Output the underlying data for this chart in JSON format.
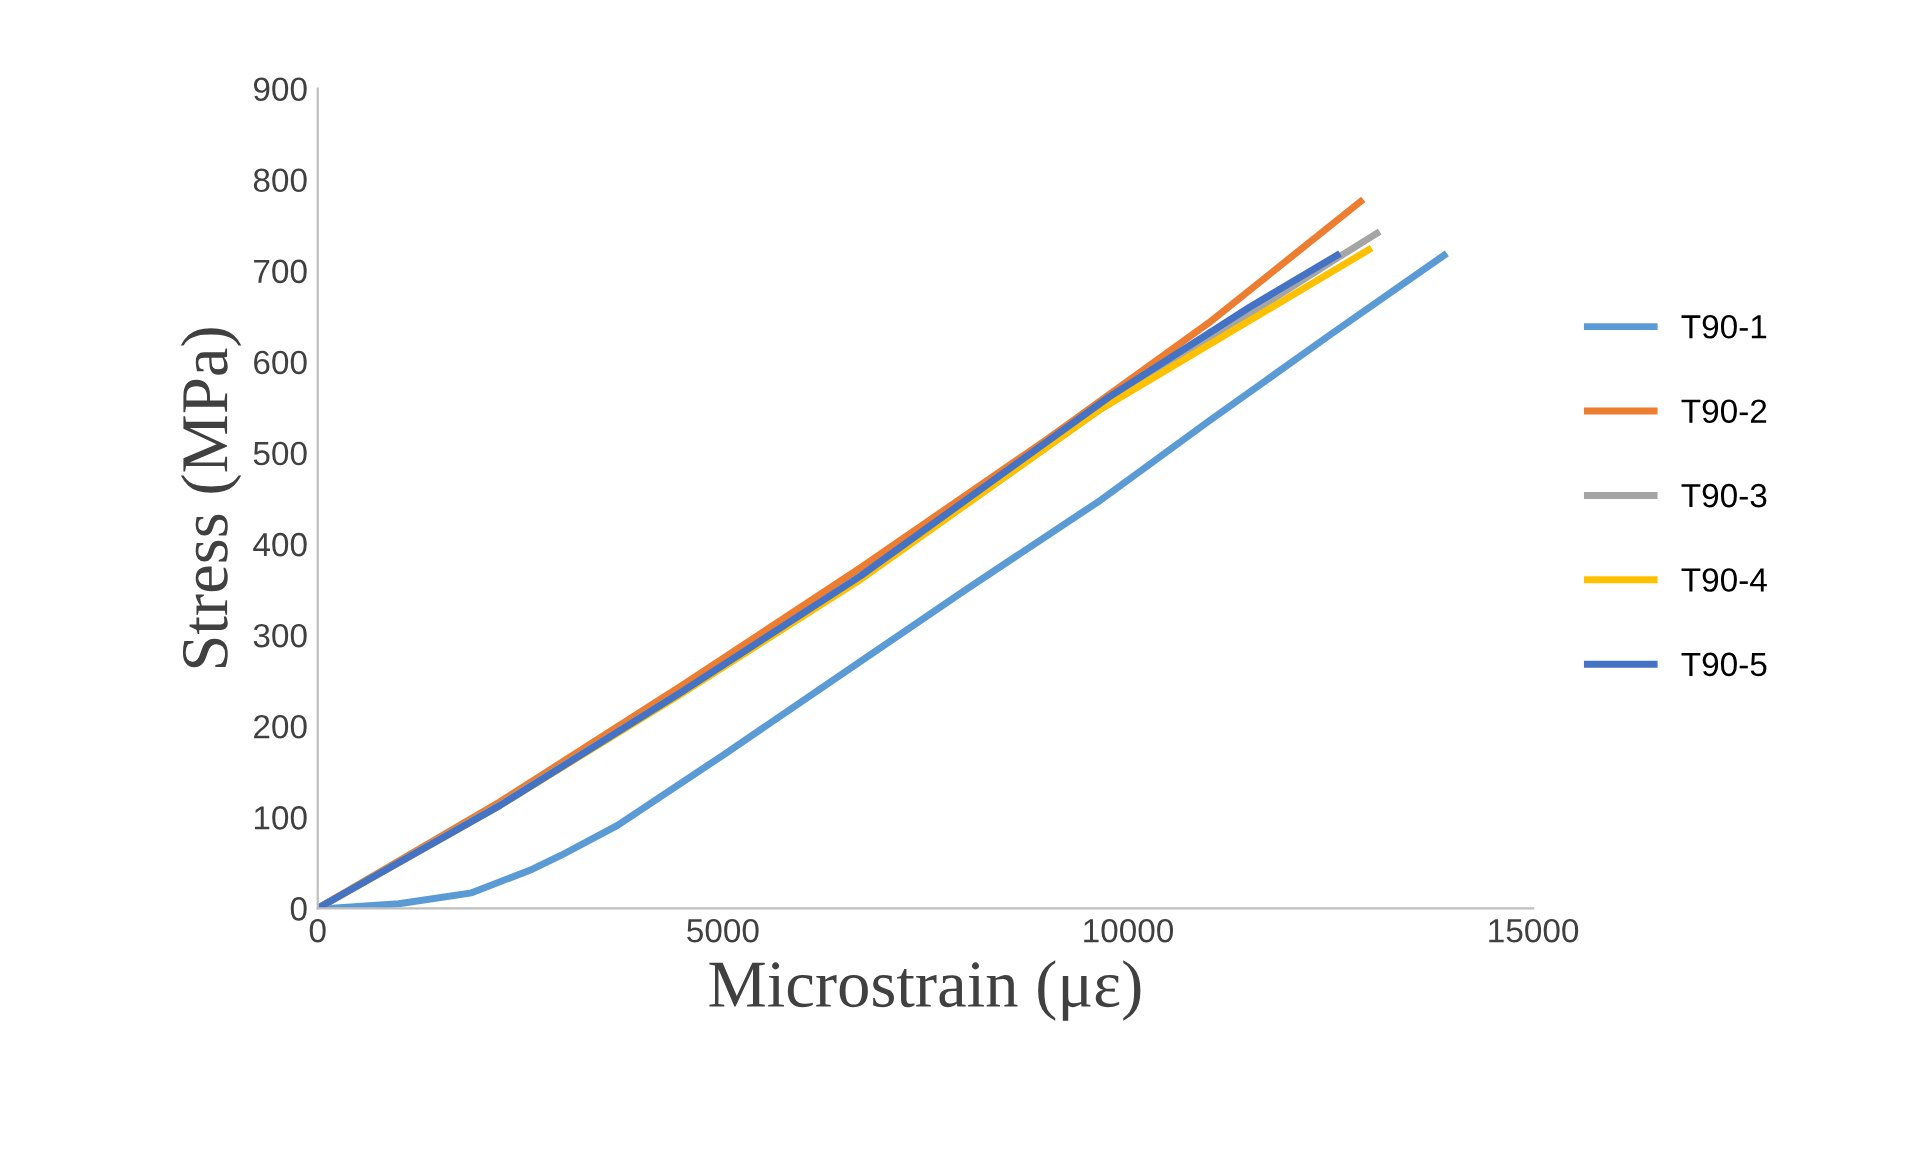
{
  "chart_data": {
    "type": "line",
    "xlabel": "Microstrain (με)",
    "ylabel": "Stress (MPa)",
    "xlim": [
      0,
      15000
    ],
    "xticks": [
      0,
      5000,
      10000,
      15000
    ],
    "ylim": [
      0,
      900
    ],
    "yticks": [
      0,
      100,
      200,
      300,
      400,
      500,
      600,
      700,
      800,
      900
    ],
    "grid": false,
    "legend": "right",
    "marker": "none",
    "line_style": "solid",
    "series": [
      {
        "name": "T90-1",
        "color": "#5b9bd5",
        "x": [
          0,
          180,
          1000,
          1900,
          2650,
          3000,
          3700,
          5000,
          6700,
          8000,
          9660,
          11000,
          12500,
          13900
        ],
        "values": [
          0,
          0,
          5,
          17,
          43,
          58,
          91,
          168,
          271,
          350,
          448,
          535,
          630,
          717
        ]
      },
      {
        "name": "T90-2",
        "color": "#ed7d31",
        "x": [
          0,
          2250,
          4500,
          6700,
          9000,
          11000,
          12870
        ],
        "values": [
          0,
          117,
          245,
          374,
          515,
          643,
          776
        ]
      },
      {
        "name": "T90-3",
        "color": "#a5a5a5",
        "x": [
          0,
          2250,
          4500,
          6700,
          9660,
          12600,
          13070
        ],
        "values": [
          0,
          114,
          238,
          362,
          548,
          715,
          741
        ]
      },
      {
        "name": "T90-4",
        "color": "#ffc000",
        "x": [
          0,
          2250,
          4500,
          6700,
          9660,
          12970
        ],
        "values": [
          0,
          113,
          236,
          361,
          548,
          723
        ]
      },
      {
        "name": "T90-5",
        "color": "#4472c4",
        "x": [
          0,
          2250,
          4500,
          6700,
          9760,
          11500,
          12580
        ],
        "values": [
          0,
          113,
          238,
          365,
          561,
          660,
          717
        ]
      }
    ]
  }
}
